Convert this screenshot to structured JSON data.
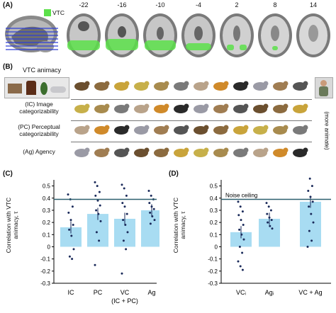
{
  "panels": {
    "A": {
      "label": "(A)",
      "legend_label": "VTC",
      "legend_color": "#5ce04a",
      "slice_numbers": [
        "-22",
        "-16",
        "-10",
        "-4",
        "2",
        "8",
        "14"
      ]
    },
    "B": {
      "label": "(B)",
      "rows": [
        {
          "label": "VTC animacy"
        },
        {
          "label_line1": "(IC) Image",
          "label_line2": "categorizability"
        },
        {
          "label_line1": "(PC) Perceptual",
          "label_line2": "categorizability"
        },
        {
          "label": "(Ag) Agency"
        }
      ],
      "side_label": "(more animate)"
    },
    "C": {
      "label": "(C)",
      "ylabel": "Correlation with VTC animacy, τ",
      "yticks": [
        "0.5",
        "0.4",
        "0.3",
        "0.2",
        "0.1",
        "0",
        "-0.1",
        "-0.2",
        "-0.3"
      ],
      "xlabels": [
        "IC",
        "PC",
        "VC",
        "Ag"
      ],
      "vc_sub": "(IC + PC)"
    },
    "D": {
      "label": "(D)",
      "ylabel": "Correlation with VTC animacy, τ",
      "yticks": [
        "0.5",
        "0.4",
        "0.3",
        "0.2",
        "0.1",
        "0",
        "-0.1",
        "-0.2",
        "-0.3"
      ],
      "xlabels": [
        "VCᵢ",
        "Agᵢ",
        "VC + Ag"
      ],
      "noise_ceiling_label": "Noise ceiling"
    }
  },
  "chart_data": [
    {
      "type": "bar",
      "panel": "C",
      "categories": [
        "IC",
        "PC",
        "VC",
        "Ag"
      ],
      "values": [
        0.16,
        0.27,
        0.23,
        0.3
      ],
      "noise_ceiling": 0.39,
      "ylim": [
        -0.3,
        0.55
      ],
      "ylabel": "Correlation with VTC animacy, τ",
      "points": [
        [
          0.43,
          0.39,
          0.33,
          0.28,
          0.22,
          0.18,
          0.14,
          0.09,
          -0.02,
          -0.08,
          -0.1
        ],
        [
          0.53,
          0.5,
          0.45,
          0.42,
          0.38,
          0.34,
          0.3,
          0.27,
          0.21,
          0.12,
          0.05,
          -0.15
        ],
        [
          0.51,
          0.48,
          0.42,
          0.36,
          0.33,
          0.27,
          0.22,
          0.18,
          0.12,
          0.05,
          -0.02,
          -0.22
        ],
        [
          0.46,
          0.42,
          0.39,
          0.36,
          0.33,
          0.31,
          0.28,
          0.25,
          0.22,
          0.19
        ]
      ]
    },
    {
      "type": "bar",
      "panel": "D",
      "categories": [
        "VCᵢ",
        "Agᵢ",
        "VC + Ag"
      ],
      "values": [
        0.12,
        0.23,
        0.37
      ],
      "noise_ceiling": 0.39,
      "ylim": [
        -0.3,
        0.55
      ],
      "ylabel": "Correlation with VTC animacy, τ",
      "points": [
        [
          0.37,
          0.33,
          0.29,
          0.26,
          0.22,
          0.18,
          0.14,
          0.1,
          0.06,
          0.0,
          -0.05,
          -0.12,
          -0.16,
          -0.19
        ],
        [
          0.36,
          0.33,
          0.3,
          0.27,
          0.24,
          0.22,
          0.2,
          0.17,
          0.15
        ],
        [
          0.61,
          0.56,
          0.5,
          0.46,
          0.41,
          0.37,
          0.33,
          0.27,
          0.2,
          0.13,
          0.05,
          0.0
        ]
      ]
    }
  ]
}
